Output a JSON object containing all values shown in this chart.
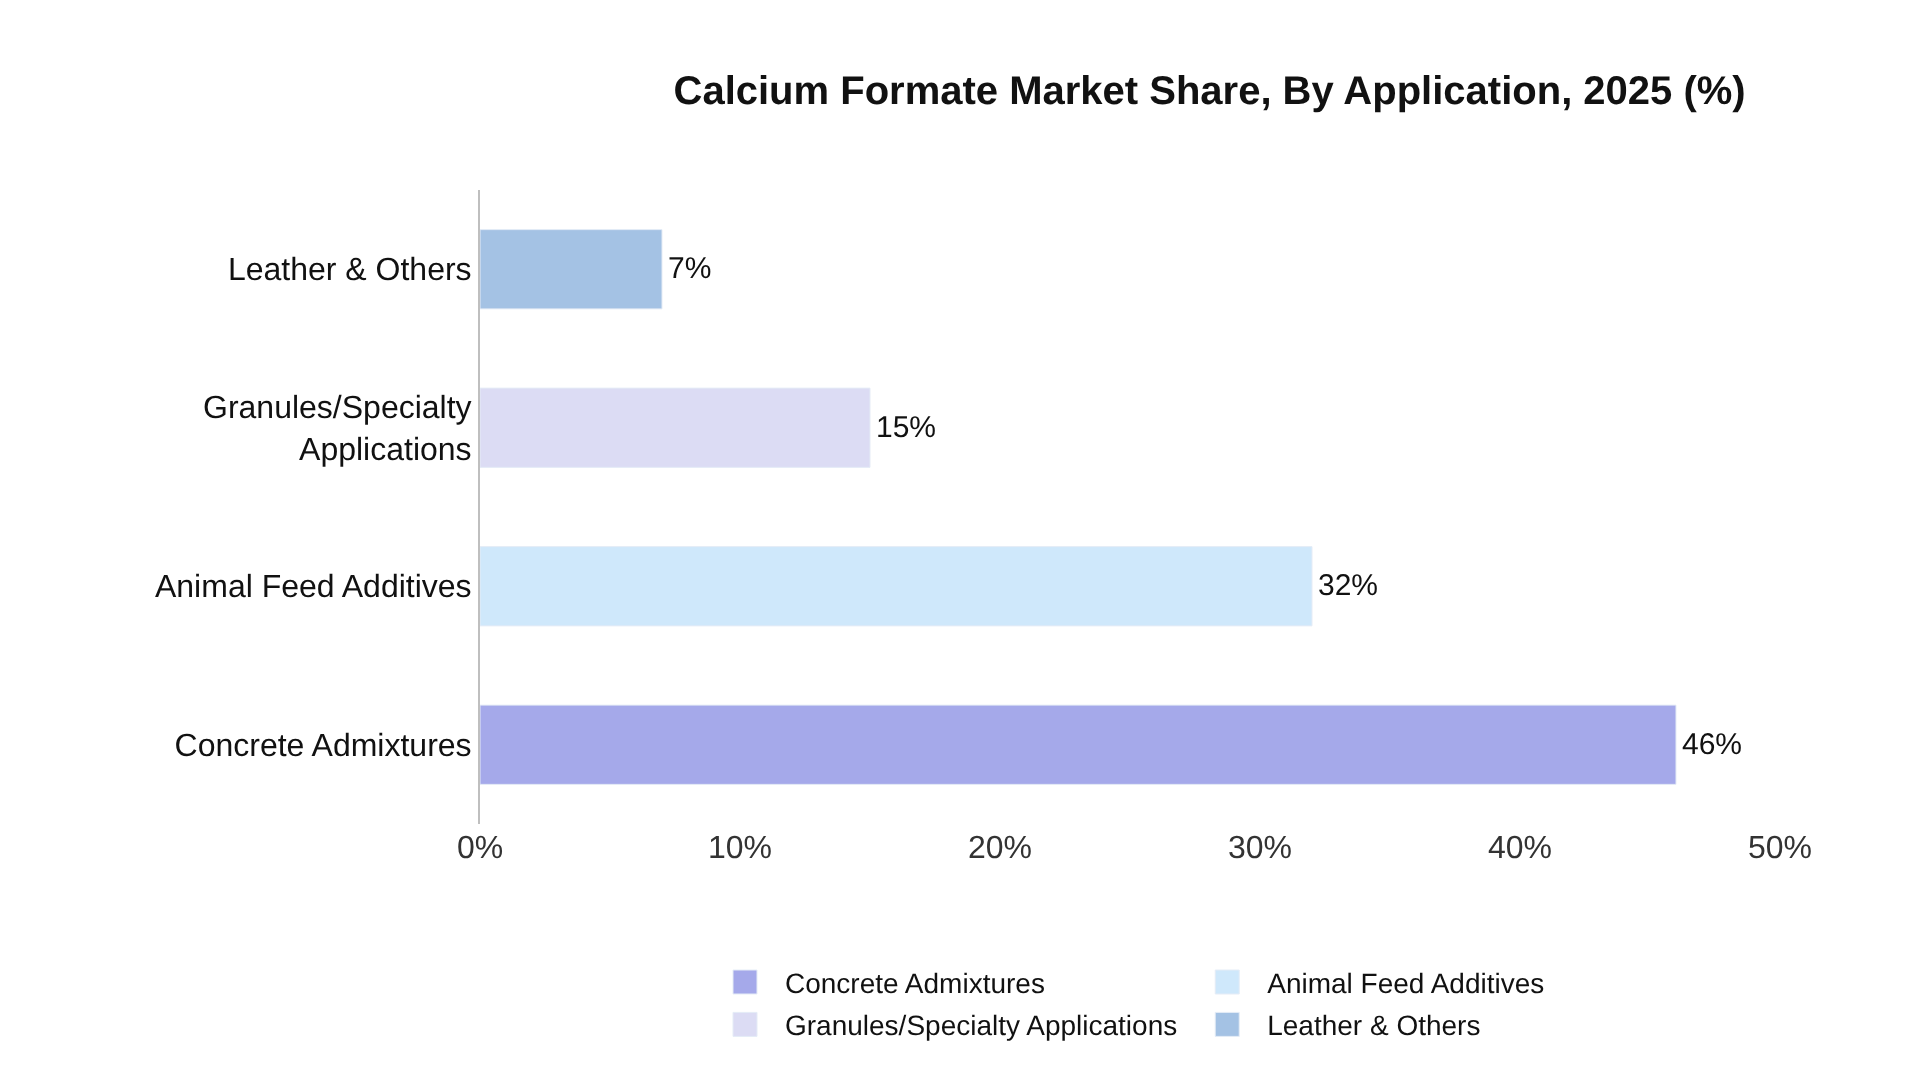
{
  "chart_data": {
    "type": "bar",
    "orientation": "horizontal",
    "title": "Calcium Formate Market Share, By Application, 2025 (%)",
    "categories": [
      "Leather & Others",
      "Granules/Specialty Applications",
      "Animal Feed Additives",
      "Concrete Admixtures"
    ],
    "series": [
      {
        "name": "Concrete Admixtures",
        "color": "#a5a9ea",
        "values": [
          null,
          null,
          null,
          46
        ],
        "value_labels": [
          null,
          null,
          null,
          "46%"
        ]
      },
      {
        "name": "Animal Feed Additives",
        "color": "#cfe8fb",
        "values": [
          null,
          null,
          32,
          null
        ],
        "value_labels": [
          null,
          null,
          "32%",
          null
        ]
      },
      {
        "name": "Granules/Specialty Applications",
        "color": "#dcdcf4",
        "values": [
          null,
          15,
          null,
          null
        ],
        "value_labels": [
          null,
          "15%",
          null,
          null
        ]
      },
      {
        "name": "Leather & Others",
        "color": "#a4c2e4",
        "values": [
          7,
          null,
          null,
          null
        ],
        "value_labels": [
          "7%",
          null,
          null,
          null
        ]
      }
    ],
    "xlim": [
      0,
      50
    ],
    "xticks": [
      {
        "value": 0,
        "label": "0%"
      },
      {
        "value": 10,
        "label": "10%"
      },
      {
        "value": 20,
        "label": "20%"
      },
      {
        "value": 30,
        "label": "30%"
      },
      {
        "value": 40,
        "label": "40%"
      },
      {
        "value": 50,
        "label": "50%"
      }
    ],
    "legend": "bottom"
  }
}
